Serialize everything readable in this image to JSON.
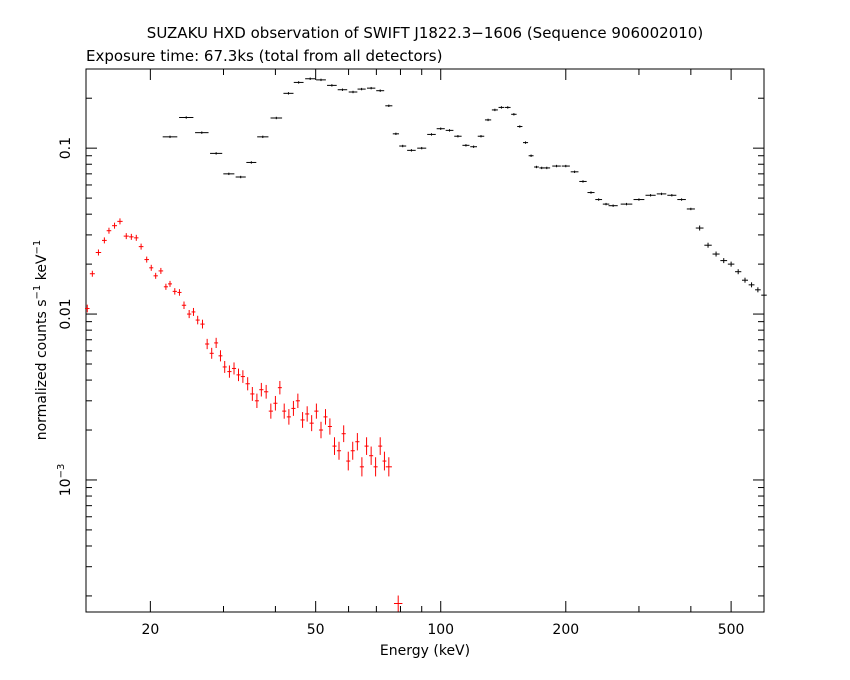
{
  "chart_data": {
    "type": "scatter",
    "title": "SUZAKU HXD observation of SWIFT J1822.3−1606 (Sequence 906002010)",
    "subtitle": "Exposure time: 67.3ks (total from all detectors)",
    "xlabel": "Energy (keV)",
    "ylabel": {
      "prefix": "normalized counts s",
      "exp1": "−1",
      "middle": " keV",
      "exp2": "−1"
    },
    "x_scale": "log",
    "y_scale": "log",
    "xlim": [
      14,
      600
    ],
    "ylim": [
      0.00016,
      0.3
    ],
    "x_ticks": [
      {
        "value": 20,
        "label": "20"
      },
      {
        "value": 50,
        "label": "50"
      },
      {
        "value": 100,
        "label": "100"
      },
      {
        "value": 200,
        "label": "200"
      },
      {
        "value": 500,
        "label": "500"
      }
    ],
    "y_ticks": [
      {
        "value": 0.1,
        "label": "0.1",
        "base": "",
        "exp": ""
      },
      {
        "value": 0.01,
        "label": "0.01",
        "base": "",
        "exp": ""
      },
      {
        "value": 0.001,
        "label": "",
        "base": "10",
        "exp": "−3"
      }
    ],
    "grid": false,
    "legend": "none",
    "series": [
      {
        "color": "#000000",
        "points": [
          [
            22.3,
            0.117
          ],
          [
            24.4,
            0.153
          ],
          [
            26.6,
            0.124
          ],
          [
            28.8,
            0.093
          ],
          [
            30.9,
            0.07
          ],
          [
            33.0,
            0.067
          ],
          [
            35.0,
            0.082
          ],
          [
            37.3,
            0.117
          ],
          [
            40.2,
            0.152
          ],
          [
            43.0,
            0.214
          ],
          [
            45.5,
            0.249
          ],
          [
            48.5,
            0.262
          ],
          [
            51.5,
            0.258
          ],
          [
            54.7,
            0.239
          ],
          [
            58.0,
            0.225
          ],
          [
            61.5,
            0.218
          ],
          [
            64.5,
            0.227
          ],
          [
            68.0,
            0.23
          ],
          [
            71.5,
            0.222
          ],
          [
            75.0,
            0.18
          ],
          [
            78.0,
            0.122
          ],
          [
            81.0,
            0.103
          ],
          [
            85.0,
            0.097
          ],
          [
            90.0,
            0.1
          ],
          [
            95.0,
            0.121
          ],
          [
            100.0,
            0.131
          ],
          [
            105.0,
            0.128
          ],
          [
            110.0,
            0.118
          ],
          [
            115.0,
            0.104
          ],
          [
            120.0,
            0.102
          ],
          [
            125.0,
            0.118
          ],
          [
            130.0,
            0.148
          ],
          [
            135.0,
            0.17
          ],
          [
            140.0,
            0.176
          ],
          [
            145.0,
            0.176
          ],
          [
            150.0,
            0.16
          ],
          [
            155.0,
            0.135
          ],
          [
            160.0,
            0.108
          ],
          [
            165.0,
            0.09
          ],
          [
            170.0,
            0.077
          ],
          [
            175.0,
            0.076
          ],
          [
            180.0,
            0.076
          ],
          [
            190.0,
            0.078
          ],
          [
            200.0,
            0.078
          ],
          [
            210.0,
            0.072
          ],
          [
            220.0,
            0.063
          ],
          [
            230.0,
            0.054
          ],
          [
            240.0,
            0.049
          ],
          [
            250.0,
            0.046
          ],
          [
            260.0,
            0.045
          ],
          [
            280.0,
            0.046
          ],
          [
            300.0,
            0.049
          ],
          [
            320.0,
            0.052
          ],
          [
            340.0,
            0.053
          ],
          [
            360.0,
            0.052
          ],
          [
            380.0,
            0.049
          ],
          [
            400.0,
            0.043
          ],
          [
            420.0,
            0.033
          ],
          [
            440.0,
            0.026
          ],
          [
            460.0,
            0.023
          ],
          [
            480.0,
            0.021
          ],
          [
            500.0,
            0.02
          ],
          [
            520.0,
            0.018
          ],
          [
            540.0,
            0.016
          ],
          [
            560.0,
            0.015
          ],
          [
            580.0,
            0.014
          ],
          [
            600.0,
            0.013
          ]
        ]
      },
      {
        "color": "#ff0000",
        "points": [
          [
            14.1,
            0.0108
          ],
          [
            14.5,
            0.0175
          ],
          [
            15.0,
            0.0235
          ],
          [
            15.5,
            0.0278
          ],
          [
            15.9,
            0.0318
          ],
          [
            16.4,
            0.0341
          ],
          [
            16.9,
            0.0362
          ],
          [
            17.5,
            0.0295
          ],
          [
            18.0,
            0.0292
          ],
          [
            18.5,
            0.0288
          ],
          [
            19.0,
            0.0255
          ],
          [
            19.6,
            0.0213
          ],
          [
            20.1,
            0.019
          ],
          [
            20.6,
            0.017
          ],
          [
            21.2,
            0.0182
          ],
          [
            21.8,
            0.0146
          ],
          [
            22.3,
            0.0152
          ],
          [
            22.9,
            0.0137
          ],
          [
            23.5,
            0.0135
          ],
          [
            24.1,
            0.0113
          ],
          [
            24.8,
            0.01
          ],
          [
            25.4,
            0.0103
          ],
          [
            26.0,
            0.0092
          ],
          [
            26.7,
            0.0087
          ],
          [
            27.4,
            0.0066
          ],
          [
            28.1,
            0.0058
          ],
          [
            28.8,
            0.0067
          ],
          [
            29.5,
            0.0056
          ],
          [
            30.2,
            0.0048
          ],
          [
            31.0,
            0.0045
          ],
          [
            31.8,
            0.0047
          ],
          [
            32.6,
            0.0043
          ],
          [
            33.4,
            0.0042
          ],
          [
            34.3,
            0.0038
          ],
          [
            35.2,
            0.0033
          ],
          [
            36.1,
            0.003
          ],
          [
            37.0,
            0.0035
          ],
          [
            38.0,
            0.0034
          ],
          [
            39.0,
            0.0026
          ],
          [
            40.0,
            0.0029
          ],
          [
            41.0,
            0.0036
          ],
          [
            42.0,
            0.0026
          ],
          [
            43.1,
            0.0024
          ],
          [
            44.2,
            0.0027
          ],
          [
            45.3,
            0.003
          ],
          [
            46.5,
            0.0023
          ],
          [
            47.7,
            0.0025
          ],
          [
            48.9,
            0.0022
          ],
          [
            50.2,
            0.0026
          ],
          [
            51.5,
            0.002
          ],
          [
            52.8,
            0.0024
          ],
          [
            54.1,
            0.0021
          ],
          [
            55.5,
            0.0016
          ],
          [
            56.9,
            0.0015
          ],
          [
            58.4,
            0.0019
          ],
          [
            59.9,
            0.0013
          ],
          [
            61.4,
            0.0015
          ],
          [
            63.0,
            0.0017
          ],
          [
            64.6,
            0.0012
          ],
          [
            66.3,
            0.0016
          ],
          [
            68.0,
            0.0014
          ],
          [
            69.7,
            0.0012
          ],
          [
            71.5,
            0.0016
          ],
          [
            73.2,
            0.0013
          ],
          [
            75.0,
            0.0012
          ],
          [
            79.0,
            0.00018
          ]
        ]
      }
    ]
  }
}
